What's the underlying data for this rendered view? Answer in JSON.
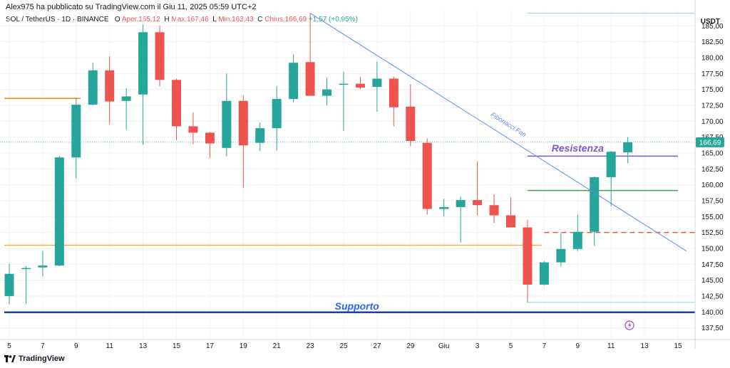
{
  "header": {
    "publisher": "Alex975 ha pubblicato su TradingView.com il Giu 11, 2025 05:59 UTC+2",
    "symbol": "SOL / TetherUS · 1D · BINANCE",
    "open_label": "O",
    "open": "Aper.165,12",
    "high_label": "H",
    "high": "Max.167,46",
    "low_label": "L",
    "low": "Min.163,43",
    "close_label": "C",
    "close": "Chius.166,69",
    "change": "+1,57 (+0,95%)",
    "currency": "USDT"
  },
  "footer": {
    "brand": "TradingView",
    "logo_icon": "tradingview-logo-icon"
  },
  "colors": {
    "up": "#26a69a",
    "down": "#ef5350",
    "fan": "#5b8def",
    "support": "#1e3faa",
    "resistance": "#7e57c2",
    "green_level": "#43a047",
    "orange_level": "#f57c00",
    "gold_level": "#f9a825",
    "annotation_blue": "#2962ff",
    "cyan_line": "#80deea",
    "price_tag": "#26a69a"
  },
  "chart_data": {
    "type": "candlestick",
    "x_labels": [
      "5",
      "7",
      "9",
      "11",
      "13",
      "15",
      "17",
      "19",
      "21",
      "23",
      "25",
      "27",
      "29",
      "Giu",
      "3",
      "5",
      "7",
      "9",
      "11",
      "13",
      "15"
    ],
    "y_ticks": [
      "137,50",
      "140,00",
      "142,50",
      "145,00",
      "147,50",
      "150,00",
      "152,50",
      "155,00",
      "157,50",
      "160,00",
      "162,50",
      "165,00",
      "167,50",
      "170,00",
      "172,50",
      "175,00",
      "177,50",
      "180,00",
      "182,50",
      "185,00"
    ],
    "ylim": [
      136,
      187.5
    ],
    "current_price": "166,69",
    "candles": [
      {
        "o": 142.5,
        "h": 147.6,
        "l": 141.2,
        "c": 146.0
      },
      {
        "o": 146.8,
        "h": 147.2,
        "l": 141.3,
        "c": 146.9
      },
      {
        "o": 147.0,
        "h": 149.6,
        "l": 145.6,
        "c": 147.3
      },
      {
        "o": 147.3,
        "h": 164.5,
        "l": 147.2,
        "c": 164.3
      },
      {
        "o": 164.3,
        "h": 173.7,
        "l": 161.0,
        "c": 172.6
      },
      {
        "o": 172.6,
        "h": 179.2,
        "l": 172.5,
        "c": 178.0
      },
      {
        "o": 178.0,
        "h": 180.2,
        "l": 169.5,
        "c": 173.1
      },
      {
        "o": 173.2,
        "h": 175.2,
        "l": 168.7,
        "c": 173.9
      },
      {
        "o": 174.2,
        "h": 185.2,
        "l": 166.3,
        "c": 184.0
      },
      {
        "o": 184.0,
        "h": 185.0,
        "l": 175.5,
        "c": 176.5
      },
      {
        "o": 176.5,
        "h": 176.7,
        "l": 167.0,
        "c": 169.2
      },
      {
        "o": 169.2,
        "h": 171.4,
        "l": 166.4,
        "c": 168.2
      },
      {
        "o": 168.2,
        "h": 168.3,
        "l": 164.2,
        "c": 166.5
      },
      {
        "o": 165.8,
        "h": 177.5,
        "l": 164.5,
        "c": 173.2
      },
      {
        "o": 173.2,
        "h": 174.1,
        "l": 159.5,
        "c": 166.2
      },
      {
        "o": 166.6,
        "h": 169.8,
        "l": 165.3,
        "c": 168.9
      },
      {
        "o": 168.9,
        "h": 175.5,
        "l": 165.4,
        "c": 173.5
      },
      {
        "o": 173.5,
        "h": 180.5,
        "l": 173.0,
        "c": 179.2
      },
      {
        "o": 179.3,
        "h": 187.0,
        "l": 174.2,
        "c": 174.0
      },
      {
        "o": 174.0,
        "h": 176.8,
        "l": 172.5,
        "c": 175.0
      },
      {
        "o": 175.8,
        "h": 177.8,
        "l": 168.5,
        "c": 175.9
      },
      {
        "o": 175.9,
        "h": 177.0,
        "l": 175.0,
        "c": 175.3
      },
      {
        "o": 175.4,
        "h": 179.4,
        "l": 171.5,
        "c": 176.7
      },
      {
        "o": 176.7,
        "h": 177.0,
        "l": 169.2,
        "c": 172.2
      },
      {
        "o": 172.3,
        "h": 175.8,
        "l": 166.1,
        "c": 166.9
      },
      {
        "o": 166.6,
        "h": 167.3,
        "l": 155.3,
        "c": 156.2
      },
      {
        "o": 156.2,
        "h": 157.8,
        "l": 155.0,
        "c": 156.5
      },
      {
        "o": 156.5,
        "h": 158.2,
        "l": 150.9,
        "c": 157.6
      },
      {
        "o": 157.6,
        "h": 163.7,
        "l": 155.2,
        "c": 156.8
      },
      {
        "o": 156.8,
        "h": 158.5,
        "l": 154.0,
        "c": 155.2
      },
      {
        "o": 155.2,
        "h": 158.0,
        "l": 153.3,
        "c": 153.3
      },
      {
        "o": 153.3,
        "h": 154.5,
        "l": 141.5,
        "c": 144.3
      },
      {
        "o": 144.3,
        "h": 148.0,
        "l": 144.2,
        "c": 147.8
      },
      {
        "o": 147.8,
        "h": 152.4,
        "l": 147.1,
        "c": 149.9
      },
      {
        "o": 149.9,
        "h": 155.3,
        "l": 149.6,
        "c": 152.6
      },
      {
        "o": 152.6,
        "h": 161.3,
        "l": 150.4,
        "c": 161.2
      },
      {
        "o": 161.2,
        "h": 165.3,
        "l": 156.6,
        "c": 165.2
      },
      {
        "o": 165.1,
        "h": 167.5,
        "l": 163.4,
        "c": 166.7
      }
    ],
    "levels": [
      {
        "name": "Supporto",
        "price": 139.95,
        "style": "solid-thick"
      },
      {
        "name": "Resistenza",
        "price": 164.5,
        "style": "solid"
      },
      {
        "name": "green",
        "price": 159.1,
        "style": "solid"
      },
      {
        "name": "red-dashed",
        "price": 152.5,
        "style": "dashed"
      },
      {
        "name": "orange",
        "price": 173.6,
        "style": "solid"
      },
      {
        "name": "gold",
        "price": 150.5,
        "style": "solid"
      },
      {
        "name": "cyan-top",
        "price": 187.0,
        "style": "thin"
      },
      {
        "name": "cyan-bottom",
        "price": 141.5,
        "style": "thin"
      }
    ],
    "fibonacci_fan_label": "Fibonacci Fan",
    "annotations": {
      "support_label": "Supporto",
      "resistance_label": "Resistenza"
    }
  }
}
